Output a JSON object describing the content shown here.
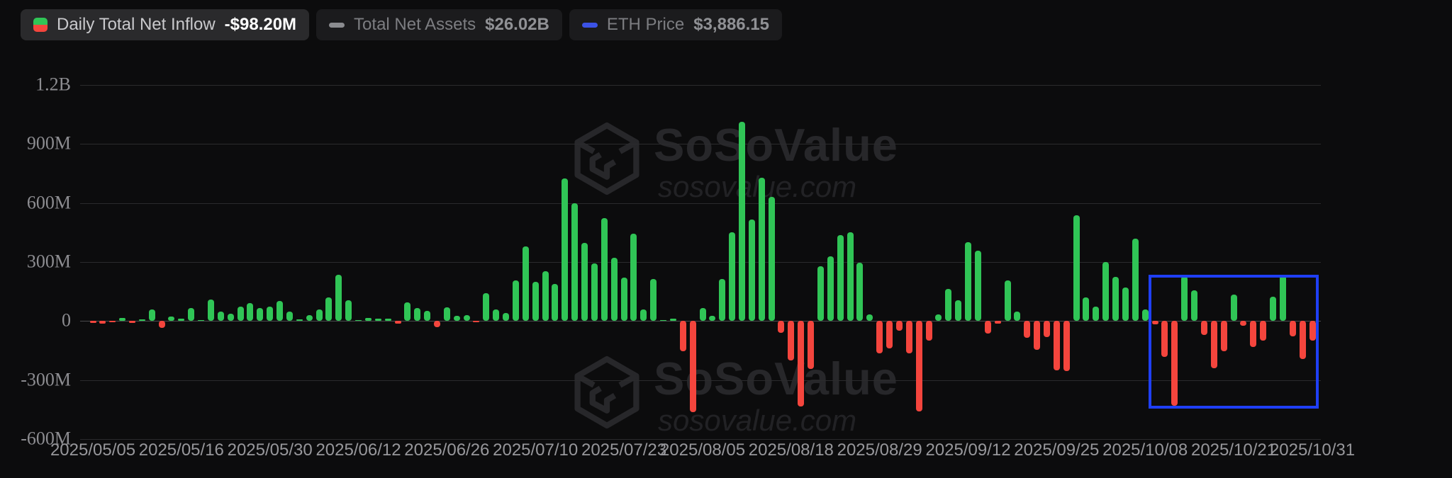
{
  "legend": {
    "daily": {
      "label": "Daily Total Net Inflow",
      "value": "-$98.20M",
      "icon": "split-green-red-square-icon",
      "active": true
    },
    "assets": {
      "label": "Total Net Assets",
      "value": "$26.02B",
      "icon": "gray-dash-icon",
      "active": false
    },
    "eth": {
      "label": "ETH Price",
      "value": "$3,886.15",
      "icon": "blue-dash-icon",
      "active": false
    }
  },
  "watermark": {
    "brand": "SoSoValue",
    "domain": "sosovalue.com",
    "logo": "cube-logo-icon"
  },
  "colors": {
    "positive_bar": "#30c556",
    "negative_bar": "#f4453d",
    "highlight_box": "#1f3ff5",
    "eth_price_series": "#3b52e6",
    "assets_series": "#8b8c90",
    "grid": "#2b2b2d",
    "zero_line": "#4a4a4d",
    "background": "#0c0c0d"
  },
  "chart_data": {
    "type": "bar",
    "title": "Daily Total Net Inflow",
    "unit": "millions USD",
    "ylim": [
      -600,
      1320
    ],
    "grid": true,
    "y_axis": {
      "ticks": [
        {
          "value": 1200,
          "label": "1.2B"
        },
        {
          "value": 900,
          "label": "900M"
        },
        {
          "value": 600,
          "label": "600M"
        },
        {
          "value": 300,
          "label": "300M"
        },
        {
          "value": 0,
          "label": "0"
        },
        {
          "value": -300,
          "label": "-300M"
        },
        {
          "value": -600,
          "label": "-600M"
        }
      ]
    },
    "x_ticks": [
      {
        "index": 0,
        "label": "2025/05/05"
      },
      {
        "index": 9,
        "label": "2025/05/16"
      },
      {
        "index": 18,
        "label": "2025/05/30"
      },
      {
        "index": 27,
        "label": "2025/06/12"
      },
      {
        "index": 36,
        "label": "2025/06/26"
      },
      {
        "index": 45,
        "label": "2025/07/10"
      },
      {
        "index": 54,
        "label": "2025/07/23"
      },
      {
        "index": 62,
        "label": "2025/08/05"
      },
      {
        "index": 71,
        "label": "2025/08/18"
      },
      {
        "index": 80,
        "label": "2025/08/29"
      },
      {
        "index": 89,
        "label": "2025/09/12"
      },
      {
        "index": 98,
        "label": "2025/09/25"
      },
      {
        "index": 107,
        "label": "2025/10/08"
      },
      {
        "index": 116,
        "label": "2025/10/21"
      },
      {
        "index": 124,
        "label": "2025/10/31"
      }
    ],
    "values": [
      -10,
      -12,
      -7,
      17,
      -10,
      7,
      60,
      -36,
      22,
      12,
      66,
      2,
      108,
      48,
      36,
      72,
      90,
      66,
      72,
      102,
      48,
      10,
      30,
      60,
      120,
      235,
      107,
      2,
      17,
      11,
      11,
      -13,
      95,
      65,
      50,
      -31,
      69,
      25,
      29,
      -7,
      143,
      59,
      41,
      207,
      378,
      200,
      254,
      189,
      723,
      597,
      396,
      294,
      522,
      320,
      221,
      444,
      59,
      215,
      6,
      11,
      -155,
      -465,
      65,
      25,
      215,
      452,
      1012,
      517,
      727,
      631,
      -60,
      -200,
      -435,
      -245,
      278,
      330,
      438,
      450,
      297,
      33,
      -164,
      -140,
      -49,
      -164,
      -459,
      -98,
      35,
      164,
      105,
      399,
      356,
      -64,
      -13,
      207,
      47,
      -85,
      -146,
      -83,
      -252,
      -256,
      538,
      119,
      73,
      300,
      225,
      170,
      417,
      59,
      -16,
      -182,
      -430,
      228,
      155,
      -71,
      -240,
      -152,
      134,
      -25,
      -131,
      -98,
      125,
      230,
      -79,
      -194,
      -98.2
    ],
    "highlight_box": {
      "start_index": 108,
      "end_index": 124,
      "top_value_m": 235,
      "bottom_value_m": -445
    }
  }
}
